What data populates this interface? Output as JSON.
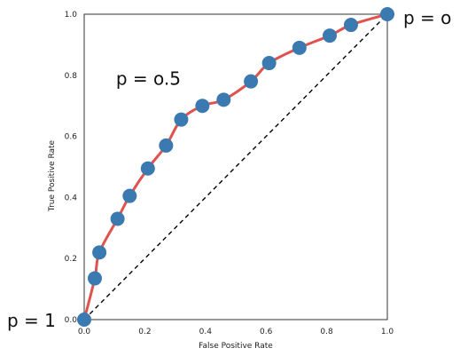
{
  "chart_data": {
    "type": "line",
    "xlabel": "False Positive Rate",
    "ylabel": "True Positive Rate",
    "xlim": [
      0.0,
      1.0
    ],
    "ylim": [
      0.0,
      1.0
    ],
    "x_ticks": [
      "0.0",
      "0.2",
      "0.4",
      "0.6",
      "0.8",
      "1.0"
    ],
    "y_ticks": [
      "0.0",
      "0.2",
      "0.4",
      "0.6",
      "0.8",
      "1.0"
    ],
    "grid": false,
    "series": [
      {
        "style": "red curve with blue circular markers",
        "color": "#e0524d",
        "marker_color": "#3a7ab0",
        "points": [
          {
            "x": 0.0,
            "y": 0.0
          },
          {
            "x": 0.035,
            "y": 0.135
          },
          {
            "x": 0.05,
            "y": 0.22
          },
          {
            "x": 0.11,
            "y": 0.33
          },
          {
            "x": 0.15,
            "y": 0.405
          },
          {
            "x": 0.21,
            "y": 0.495
          },
          {
            "x": 0.27,
            "y": 0.57
          },
          {
            "x": 0.32,
            "y": 0.655
          },
          {
            "x": 0.39,
            "y": 0.7
          },
          {
            "x": 0.46,
            "y": 0.72
          },
          {
            "x": 0.55,
            "y": 0.78
          },
          {
            "x": 0.61,
            "y": 0.84
          },
          {
            "x": 0.71,
            "y": 0.89
          },
          {
            "x": 0.81,
            "y": 0.93
          },
          {
            "x": 0.88,
            "y": 0.965
          },
          {
            "x": 1.0,
            "y": 1.0
          }
        ]
      },
      {
        "style": "dashed diagonal reference",
        "color": "#000000",
        "points": [
          {
            "x": 0.0,
            "y": 0.0
          },
          {
            "x": 1.0,
            "y": 1.0
          }
        ]
      }
    ],
    "annotations": [
      {
        "text": "p = 1",
        "x": 0.0,
        "y": 0.0
      },
      {
        "text": "p = o.5",
        "x": 0.21,
        "y": 0.78
      },
      {
        "text": "p = o",
        "x": 1.0,
        "y": 1.0
      }
    ]
  }
}
